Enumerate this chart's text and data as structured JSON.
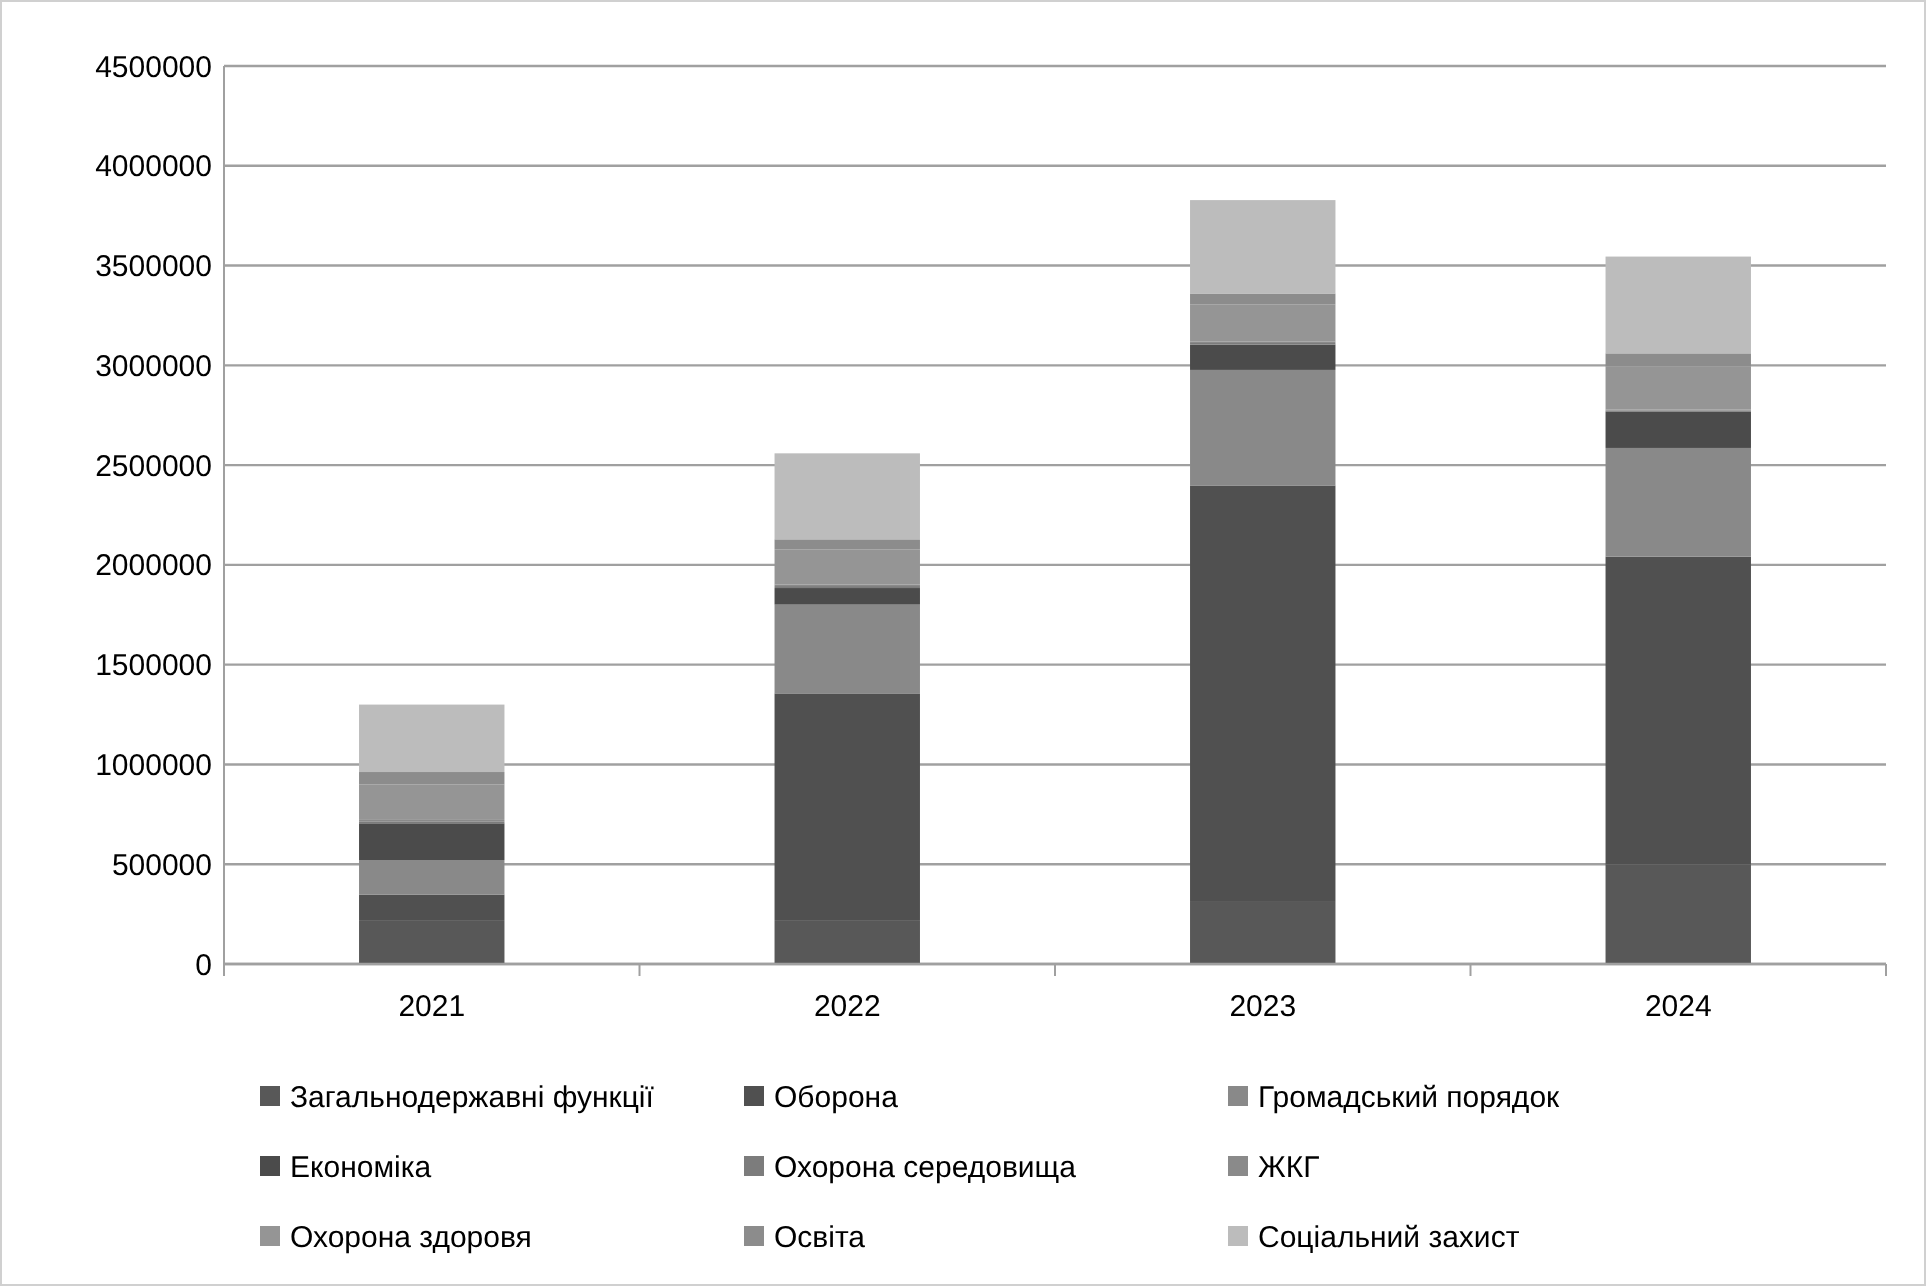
{
  "chart_data": {
    "type": "bar",
    "stacked": true,
    "categories": [
      "2021",
      "2022",
      "2023",
      "2024"
    ],
    "series": [
      {
        "name": "Загальнодержавні функції",
        "color": "#585858",
        "values": [
          220000,
          220000,
          311000,
          498000
        ]
      },
      {
        "name": "Оборона",
        "color": "#505050",
        "values": [
          128000,
          1136000,
          2087000,
          1543000
        ]
      },
      {
        "name": "Громадський порядок",
        "color": "#898989",
        "values": [
          173000,
          445000,
          579000,
          545000
        ]
      },
      {
        "name": "Економіка",
        "color": "#4b4b4b",
        "values": [
          184000,
          83000,
          127000,
          183000
        ]
      },
      {
        "name": "Охорона середовища",
        "color": "#7c7c7c",
        "values": [
          10000,
          10000,
          8000,
          5000
        ]
      },
      {
        "name": "ЖКГ",
        "color": "#8a8a8a",
        "values": [
          7000,
          7000,
          8000,
          5000
        ]
      },
      {
        "name": "Охорона здоровя",
        "color": "#959595",
        "values": [
          177000,
          177000,
          184000,
          215000
        ]
      },
      {
        "name": "Освіта",
        "color": "#8c8c8c",
        "values": [
          63000,
          50000,
          56000,
          66000
        ]
      },
      {
        "name": "Соціальний захист",
        "color": "#bcbcbc",
        "values": [
          338000,
          431000,
          468000,
          485000
        ]
      }
    ],
    "ylim": [
      0,
      4500000
    ],
    "yticks": [
      0,
      500000,
      1000000,
      1500000,
      2000000,
      2500000,
      3000000,
      3500000,
      4000000,
      4500000
    ],
    "grid": "y",
    "legend": "bottom"
  }
}
